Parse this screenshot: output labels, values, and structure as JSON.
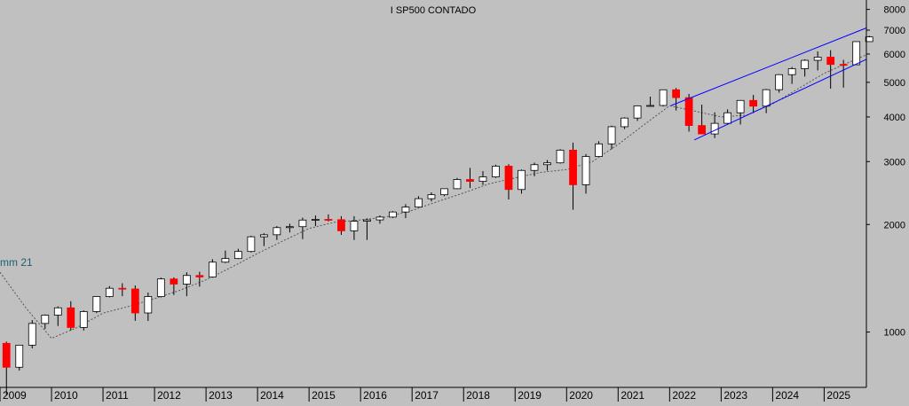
{
  "chart_data": {
    "type": "candlestick",
    "title": "I SP500 CONTADO",
    "y_scale": "log",
    "ylim": [
      700,
      8500
    ],
    "y_ticks": [
      1000,
      2000,
      3000,
      4000,
      5000,
      6000,
      7000,
      8000
    ],
    "y_tick_labels": [
      "1000",
      "2000",
      "3000",
      "4000",
      "5000",
      "6000",
      "7000",
      "8000"
    ],
    "x_ticks": [
      "2009",
      "2010",
      "2011",
      "2012",
      "2013",
      "2014",
      "2015",
      "2016",
      "2017",
      "2018",
      "2019",
      "2020",
      "2021",
      "2022",
      "2023",
      "2024",
      "2025"
    ],
    "x_range": [
      2009.0,
      2025.82
    ],
    "annotation": "mm 21",
    "legend": "none",
    "grid": false,
    "colors": {
      "background": "#c0c0c0",
      "bull_candle": "#ffffff",
      "bear_candle": "#ff0000",
      "wick": "#000000",
      "channel": "#0000ff",
      "moving_average": "#555555",
      "axis": "#000000"
    },
    "channel_lines": [
      {
        "name": "upper",
        "from": [
          2022.02,
          4300
        ],
        "to": [
          2025.82,
          7100
        ]
      },
      {
        "name": "lower",
        "from": [
          2022.48,
          3450
        ],
        "to": [
          2025.82,
          5800
        ]
      }
    ],
    "ohlc": {
      "t": [
        2009.0,
        2009.25,
        2009.5,
        2009.75,
        2010.0,
        2010.25,
        2010.5,
        2010.75,
        2011.0,
        2011.25,
        2011.5,
        2011.75,
        2012.0,
        2012.25,
        2012.5,
        2012.75,
        2013.0,
        2013.25,
        2013.5,
        2013.75,
        2014.0,
        2014.25,
        2014.5,
        2014.75,
        2015.0,
        2015.25,
        2015.5,
        2015.75,
        2016.0,
        2016.25,
        2016.5,
        2016.75,
        2017.0,
        2017.25,
        2017.5,
        2017.75,
        2018.0,
        2018.25,
        2018.5,
        2018.75,
        2019.0,
        2019.25,
        2019.5,
        2019.75,
        2020.0,
        2020.25,
        2020.5,
        2020.75,
        2021.0,
        2021.25,
        2021.5,
        2021.75,
        2022.0,
        2022.25,
        2022.5,
        2022.75,
        2023.0,
        2023.25,
        2023.5,
        2023.75,
        2024.0,
        2024.25,
        2024.5,
        2024.75,
        2025.0,
        2025.25,
        2025.5,
        2025.75
      ],
      "open": [
        930,
        797,
        919,
        1057,
        1115,
        1169,
        1030,
        1141,
        1257,
        1326,
        1320,
        1131,
        1257,
        1408,
        1362,
        1440,
        1426,
        1569,
        1606,
        1681,
        1848,
        1872,
        1960,
        1972,
        2058,
        2067,
        2063,
        1920,
        2043,
        2060,
        2098,
        2168,
        2238,
        2362,
        2423,
        2519,
        2673,
        2641,
        2718,
        2913,
        2506,
        2834,
        2941,
        2976,
        3230,
        2584,
        3100,
        3363,
        3756,
        3972,
        4297,
        4307,
        4766,
        4530,
        3785,
        3585,
        3839,
        4109,
        4450,
        4288,
        4769,
        5254,
        5460,
        5762,
        5881,
        5611,
        5600,
        6500
      ],
      "high": [
        940,
        920,
        1080,
        1120,
        1180,
        1220,
        1150,
        1260,
        1345,
        1370,
        1350,
        1290,
        1420,
        1422,
        1470,
        1475,
        1600,
        1690,
        1710,
        1860,
        1890,
        1980,
        2010,
        2090,
        2120,
        2135,
        2110,
        2110,
        2080,
        2120,
        2180,
        2280,
        2400,
        2460,
        2520,
        2700,
        2880,
        2820,
        2940,
        2950,
        2850,
        2980,
        3030,
        3250,
        3390,
        3150,
        3420,
        3780,
        3990,
        4310,
        4560,
        4750,
        4820,
        4640,
        4330,
        4120,
        4200,
        4460,
        4610,
        4790,
        5270,
        5520,
        5800,
        6100,
        6150,
        5780,
        6400,
        6750
      ],
      "low": [
        666,
        780,
        900,
        1020,
        1040,
        1010,
        1010,
        1130,
        1250,
        1260,
        1075,
        1074,
        1250,
        1270,
        1260,
        1340,
        1420,
        1560,
        1600,
        1670,
        1740,
        1810,
        1900,
        1820,
        1980,
        2040,
        1870,
        1810,
        1810,
        2010,
        2085,
        2085,
        2230,
        2320,
        2400,
        2510,
        2530,
        2580,
        2700,
        2350,
        2440,
        2730,
        2830,
        2960,
        2200,
        2440,
        3100,
        3250,
        3700,
        3900,
        4280,
        4280,
        4170,
        3640,
        3640,
        3490,
        3810,
        3810,
        4100,
        4100,
        4680,
        4950,
        5190,
        5400,
        4800,
        4830,
        5600,
        6500
      ],
      "close": [
        797,
        919,
        1057,
        1115,
        1169,
        1030,
        1141,
        1257,
        1326,
        1320,
        1131,
        1257,
        1408,
        1362,
        1440,
        1426,
        1569,
        1606,
        1681,
        1848,
        1872,
        1960,
        1972,
        2058,
        2067,
        2063,
        1920,
        2043,
        2060,
        2098,
        2168,
        2238,
        2362,
        2423,
        2519,
        2673,
        2641,
        2718,
        2913,
        2506,
        2834,
        2941,
        2976,
        3230,
        2584,
        3100,
        3363,
        3756,
        3972,
        4297,
        4307,
        4766,
        4530,
        3785,
        3585,
        3839,
        4109,
        4450,
        4288,
        4769,
        5254,
        5460,
        5762,
        5881,
        5611,
        5600,
        6500,
        6700
      ]
    },
    "moving_average": {
      "name": "mm 21",
      "t": [
        2009.0,
        2009.5,
        2010.0,
        2010.5,
        2011.0,
        2011.5,
        2012.0,
        2012.5,
        2013.0,
        2013.5,
        2014.0,
        2014.5,
        2015.0,
        2015.5,
        2016.0,
        2016.5,
        2017.0,
        2017.5,
        2018.0,
        2018.5,
        2019.0,
        2019.5,
        2020.0,
        2020.5,
        2021.0,
        2021.5,
        2022.0,
        2022.5,
        2023.0,
        2023.5,
        2024.0,
        2024.5,
        2025.0,
        2025.5,
        2025.8
      ],
      "values": [
        1470,
        1170,
        960,
        1030,
        1130,
        1180,
        1240,
        1310,
        1400,
        1520,
        1660,
        1800,
        1950,
        2030,
        2060,
        2100,
        2190,
        2320,
        2450,
        2600,
        2700,
        2800,
        2850,
        3000,
        3350,
        3800,
        4300,
        4150,
        4000,
        4050,
        4350,
        4800,
        5300,
        5700,
        5950
      ]
    }
  }
}
